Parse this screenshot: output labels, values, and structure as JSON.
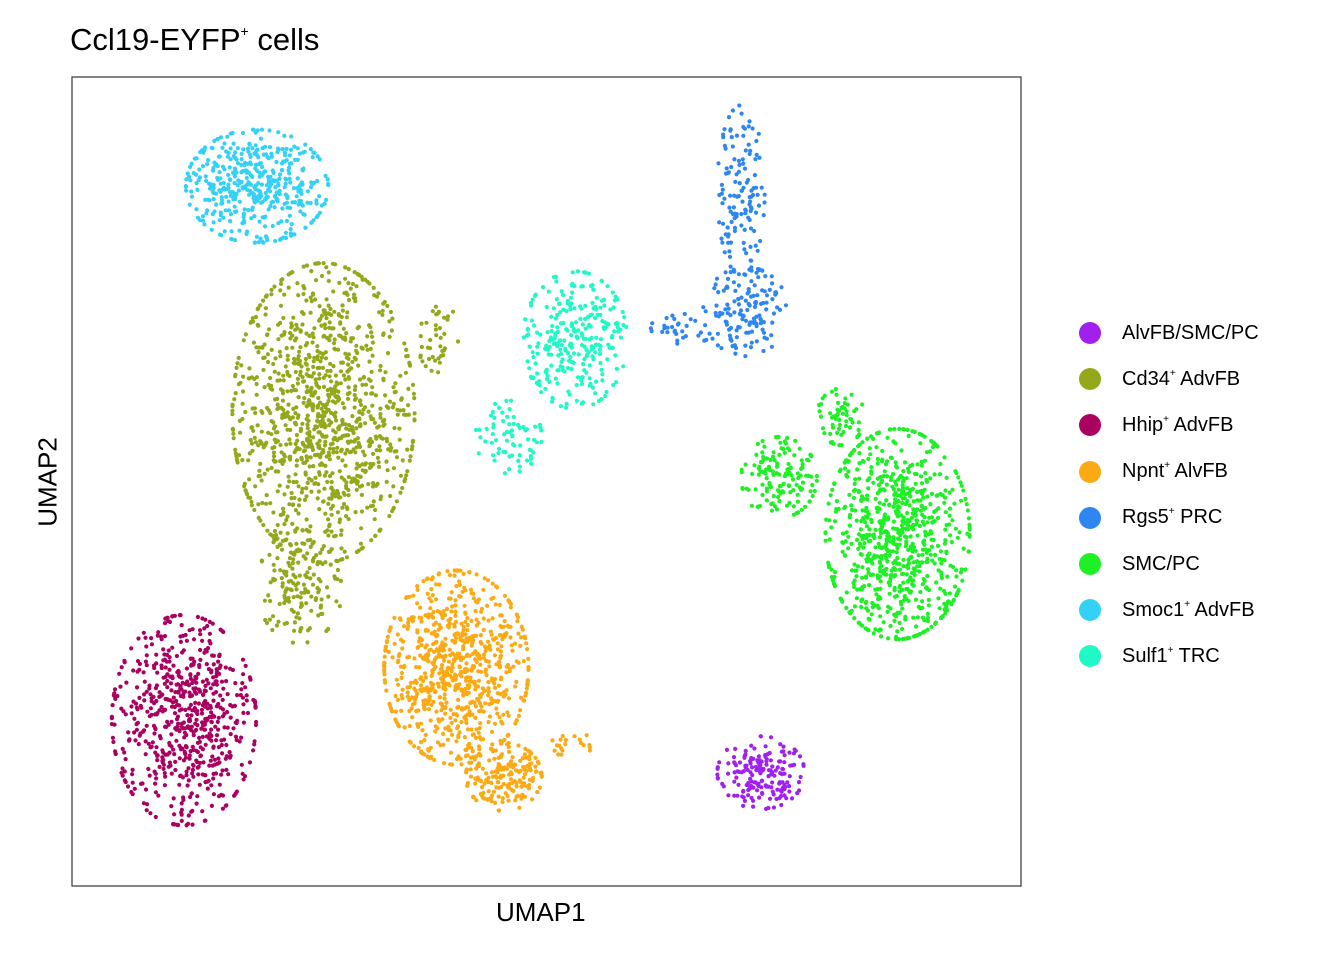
{
  "chart_data": {
    "type": "scatter",
    "title": "Ccl19-EYFP",
    "title_sup": "+",
    "title_suffix": " cells",
    "xlabel": "UMAP1",
    "ylabel": "UMAP2",
    "xlim": [
      0,
      100
    ],
    "ylim": [
      0,
      100
    ],
    "axis_ticks": false,
    "grid": false,
    "legend_position": "right",
    "series": [
      {
        "name": "AlvFB/SMC/PC",
        "label_pre": "AlvFB/SMC/PC",
        "label_sup": "",
        "label_post": "",
        "color": "#A020F0",
        "clusters": [
          {
            "cx": 72.6,
            "cy": 14.0,
            "rx": 4.6,
            "ry": 4.5,
            "n": 180
          }
        ]
      },
      {
        "name": "Cd34+ AdvFB",
        "label_pre": "Cd34",
        "label_sup": "+",
        "label_post": " AdvFB",
        "color": "#95A81B",
        "clusters": [
          {
            "cx": 26.5,
            "cy": 58.5,
            "rx": 9.6,
            "ry": 18.5,
            "n": 1100
          },
          {
            "cx": 24.0,
            "cy": 37.0,
            "rx": 4.5,
            "ry": 7.0,
            "n": 150
          },
          {
            "cx": 38.5,
            "cy": 68.0,
            "rx": 2.2,
            "ry": 4.5,
            "n": 40
          }
        ]
      },
      {
        "name": "Hhip+ AdvFB",
        "label_pre": "Hhip",
        "label_sup": "+",
        "label_post": " AdvFB",
        "color": "#AA0060",
        "clusters": [
          {
            "cx": 11.8,
            "cy": 20.5,
            "rx": 7.6,
            "ry": 13.0,
            "n": 650
          }
        ]
      },
      {
        "name": "Npnt+ AlvFB",
        "label_pre": "Npnt",
        "label_sup": "+",
        "label_post": " AlvFB",
        "color": "#FBAA14",
        "clusters": [
          {
            "cx": 40.5,
            "cy": 27.0,
            "rx": 7.6,
            "ry": 12.0,
            "n": 800
          },
          {
            "cx": 45.5,
            "cy": 13.5,
            "rx": 4.0,
            "ry": 4.2,
            "n": 180
          },
          {
            "cx": 52.5,
            "cy": 17.5,
            "rx": 3.0,
            "ry": 1.4,
            "n": 20
          }
        ]
      },
      {
        "name": "Rgs5+ PRC",
        "label_pre": "Rgs5",
        "label_sup": "+",
        "label_post": " PRC",
        "color": "#2E86F3",
        "clusters": [
          {
            "cx": 70.5,
            "cy": 86.0,
            "rx": 2.5,
            "ry": 10.5,
            "n": 130
          },
          {
            "cx": 71.0,
            "cy": 71.0,
            "rx": 4.5,
            "ry": 5.5,
            "n": 140
          },
          {
            "cx": 64.5,
            "cy": 69.0,
            "rx": 3.5,
            "ry": 2.0,
            "n": 30
          }
        ]
      },
      {
        "name": "SMC/PC",
        "label_pre": "SMC/PC",
        "label_sup": "",
        "label_post": "",
        "color": "#1DF024",
        "clusters": [
          {
            "cx": 87.0,
            "cy": 43.5,
            "rx": 7.6,
            "ry": 13.0,
            "n": 800
          },
          {
            "cx": 74.5,
            "cy": 50.5,
            "rx": 4.0,
            "ry": 5.0,
            "n": 140
          },
          {
            "cx": 81.0,
            "cy": 58.0,
            "rx": 2.5,
            "ry": 3.5,
            "n": 60
          }
        ]
      },
      {
        "name": "Smoc1+ AdvFB",
        "label_pre": "Smoc1",
        "label_sup": "+",
        "label_post": " AdvFB",
        "color": "#34D1F7",
        "clusters": [
          {
            "cx": 19.5,
            "cy": 86.5,
            "rx": 7.5,
            "ry": 7.0,
            "n": 450
          }
        ]
      },
      {
        "name": "Sulf1+ TRC",
        "label_pre": "Sulf1",
        "label_sup": "+",
        "label_post": " TRC",
        "color": "#1EF9C6",
        "clusters": [
          {
            "cx": 53.0,
            "cy": 67.5,
            "rx": 5.5,
            "ry": 8.5,
            "n": 280
          },
          {
            "cx": 46.0,
            "cy": 55.5,
            "rx": 3.5,
            "ry": 4.5,
            "n": 70
          }
        ]
      }
    ]
  }
}
